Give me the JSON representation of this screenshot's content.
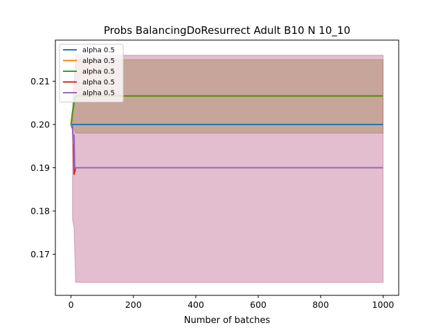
{
  "chart_data": {
    "type": "line",
    "title": "Probs BalancingDoResurrect Adult B10 N 10_10",
    "xlabel": "Number of batches",
    "ylabel": "",
    "xlim": [
      -50,
      1050
    ],
    "ylim": [
      0.1605,
      0.2195
    ],
    "xticks": [
      0,
      200,
      400,
      600,
      800,
      1000
    ],
    "yticks": [
      0.17,
      0.18,
      0.19,
      0.2,
      0.21
    ],
    "ytick_labels": [
      "0.17",
      "0.18",
      "0.19",
      "0.20",
      "0.21"
    ],
    "xtick_labels": [
      "0",
      "200",
      "400",
      "600",
      "800",
      "1000"
    ],
    "legend_position": "top-left",
    "grid": false,
    "series": [
      {
        "name": "alpha 0.5",
        "color": "#1f77b4",
        "x": [
          0,
          5,
          10,
          15,
          1000
        ],
        "y": [
          0.2,
          0.2,
          0.2,
          0.2,
          0.2
        ],
        "band": null
      },
      {
        "name": "alpha 0.5",
        "color": "#ff7f0e",
        "x": [
          0,
          5,
          10,
          15,
          1000
        ],
        "y": [
          0.2,
          0.202,
          0.205,
          0.2065,
          0.2065
        ],
        "band": {
          "x": [
            5,
            10,
            15,
            1000
          ],
          "lower": [
            0.1995,
            0.199,
            0.198,
            0.198
          ],
          "upper": [
            0.204,
            0.209,
            0.215,
            0.215
          ]
        }
      },
      {
        "name": "alpha 0.5",
        "color": "#2ca02c",
        "x": [
          0,
          5,
          10,
          15,
          1000
        ],
        "y": [
          0.2,
          0.203,
          0.205,
          0.2066,
          0.2066
        ],
        "band": {
          "x": [
            5,
            10,
            15,
            1000
          ],
          "lower": [
            0.1995,
            0.199,
            0.198,
            0.198
          ],
          "upper": [
            0.205,
            0.21,
            0.215,
            0.215
          ]
        }
      },
      {
        "name": "alpha 0.5",
        "color": "#d62728",
        "x": [
          0,
          5,
          8,
          10,
          12,
          15,
          1000
        ],
        "y": [
          0.2,
          0.199,
          0.195,
          0.1885,
          0.189,
          0.19,
          0.19
        ],
        "band": {
          "x": [
            5,
            10,
            15,
            1000
          ],
          "lower": [
            0.178,
            0.176,
            0.1635,
            0.1635
          ],
          "upper": [
            0.2,
            0.21,
            0.216,
            0.216
          ]
        }
      },
      {
        "name": "alpha 0.5",
        "color": "#9467bd",
        "x": [
          0,
          5,
          8,
          10,
          12,
          15,
          1000
        ],
        "y": [
          0.2,
          0.1995,
          0.1955,
          0.1975,
          0.1898,
          0.19,
          0.19
        ],
        "band": {
          "x": [
            5,
            10,
            15,
            1000
          ],
          "lower": [
            0.178,
            0.176,
            0.1635,
            0.1635
          ],
          "upper": [
            0.2,
            0.21,
            0.216,
            0.216
          ]
        }
      }
    ]
  }
}
